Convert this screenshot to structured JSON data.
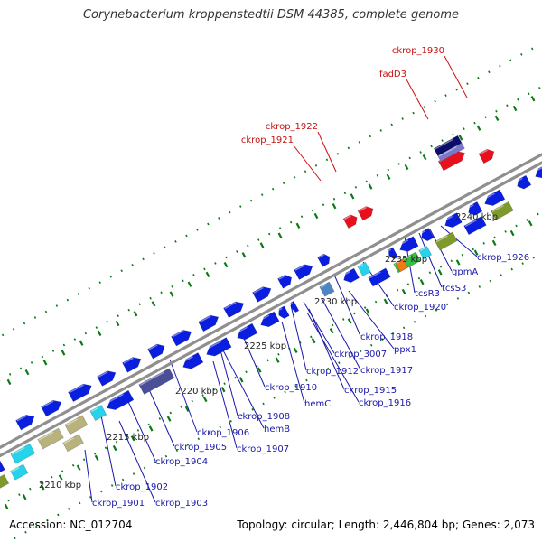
{
  "title": "Corynebacterium kroppenstedtii DSM 44385, complete genome",
  "footer": {
    "accession": "Accession: NC_012704",
    "summary": "Topology: circular; Length: 2,446,804 bp; Genes: 2,073"
  },
  "colors": {
    "backbone": "#8f8f8f",
    "gene": "#0a1ee0",
    "highlight": "#e8101c",
    "gene_label": "#1a18a8",
    "highlight_label": "#c81010",
    "tick": "#0b7a16",
    "cyan": "#27d3ea",
    "olive": "#7f9a2c",
    "khaki": "#b8b27c",
    "slate": "#4a4f98",
    "navy": "#0c0c6c",
    "green": "#33c046",
    "steel": "#4a86c4"
  },
  "scale_labels": [
    "2210 kbp",
    "2215 kbp",
    "2220 kbp",
    "2225 kbp",
    "2230 kbp",
    "2235 kbp",
    "2240 kbp"
  ],
  "top_labels": [
    "ckrop_1930",
    "fadD3",
    "ckrop_1922",
    "ckrop_1921"
  ],
  "bottom_labels": [
    "ckrop_1926",
    "gpmA",
    "tcsS3",
    "tcsR3",
    "ckrop_1920",
    "ckrop_1918",
    "ppx1",
    "ckrop_3007",
    "ckrop_1917",
    "ckrop_1912",
    "ckrop_1915",
    "ckrop_1916",
    "hemC",
    "ckrop_1910",
    "ckrop_1908",
    "hemB",
    "ckrop_1906",
    "ckrop_1907",
    "ckrop_1905",
    "ckrop_1904",
    "ckrop_1902",
    "ckrop_1903",
    "ckrop_1901"
  ]
}
